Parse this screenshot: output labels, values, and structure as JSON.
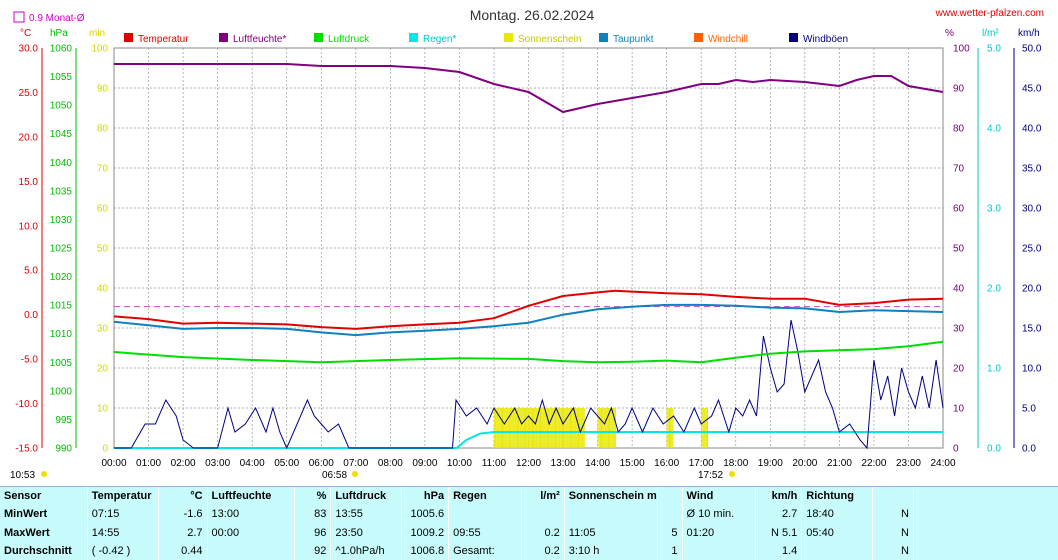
{
  "header": {
    "title": "Montag. 26.02.2024",
    "site": "www.wetter-pfalzen.com",
    "month_avg_label": "0.9 Monat-Ø",
    "unit_labels": {
      "c": "°C",
      "hpa": "hPa",
      "min": "min",
      "pct": "%",
      "lm2": "l/m²",
      "kmh": "km/h"
    }
  },
  "legend": [
    {
      "label": "Temperatur",
      "color": "#e00000"
    },
    {
      "label": "Luftfeuchte*",
      "color": "#800080"
    },
    {
      "label": "Luftdruck",
      "color": "#00dd00"
    },
    {
      "label": "Regen*",
      "color": "#00e8e8"
    },
    {
      "label": "Sonnenschein",
      "color": "#e8e800"
    },
    {
      "label": "Taupunkt",
      "color": "#1080c0"
    },
    {
      "label": "Windchill",
      "color": "#ff6000"
    },
    {
      "label": "Windböen",
      "color": "#000080"
    }
  ],
  "annotations": {
    "sunrise": "06:58",
    "sunset": "17:52",
    "corner_time": "10:53"
  },
  "chart_data": {
    "type": "line",
    "title": "Montag. 26.02.2024",
    "x_ticks": [
      "00:00",
      "01:00",
      "02:00",
      "03:00",
      "04:00",
      "05:00",
      "06:00",
      "07:00",
      "08:00",
      "09:00",
      "10:00",
      "11:00",
      "12:00",
      "13:00",
      "14:00",
      "15:00",
      "16:00",
      "17:00",
      "18:00",
      "19:00",
      "20:00",
      "21:00",
      "22:00",
      "23:00",
      "24:00"
    ],
    "axes": {
      "temperature_c": {
        "range": [
          -15,
          30
        ],
        "ticks": [
          "30.0",
          "25.0",
          "20.0",
          "15.0",
          "10.0",
          "5.0",
          "0.0",
          "-5.0",
          "-10.0",
          "-15.0"
        ]
      },
      "pressure_hpa": {
        "range": [
          990,
          1060
        ],
        "ticks": [
          "1060",
          "1055",
          "1050",
          "1045",
          "1040",
          "1035",
          "1030",
          "1025",
          "1020",
          "1015",
          "1010",
          "1005",
          "1000",
          "995",
          "990"
        ]
      },
      "sunshine_min": {
        "range": [
          0,
          100
        ],
        "ticks": [
          "100",
          "90",
          "80",
          "70",
          "60",
          "50",
          "40",
          "30",
          "20",
          "10",
          "0"
        ]
      },
      "humidity_pct": {
        "range": [
          0,
          100
        ],
        "ticks": [
          "100",
          "90",
          "80",
          "70",
          "60",
          "50",
          "40",
          "30",
          "20",
          "10",
          "0"
        ]
      },
      "rain_lm2": {
        "range": [
          0,
          5
        ],
        "ticks": [
          "5.0",
          "4.0",
          "3.0",
          "2.0",
          "1.0",
          "0.0"
        ]
      },
      "wind_kmh": {
        "range": [
          0,
          50
        ],
        "ticks": [
          "50.0",
          "45.0",
          "40.0",
          "35.0",
          "30.0",
          "25.0",
          "20.0",
          "15.0",
          "10.0",
          "5.0",
          "0.0"
        ]
      }
    },
    "month_avg_temperature": 0.9,
    "series": [
      {
        "name": "Luftfeuchte*",
        "axis": "humidity_pct",
        "points": [
          [
            0,
            96
          ],
          [
            5,
            96
          ],
          [
            6,
            95.5
          ],
          [
            7,
            95.5
          ],
          [
            8,
            95.5
          ],
          [
            9,
            95
          ],
          [
            10,
            94
          ],
          [
            11,
            91
          ],
          [
            12,
            89
          ],
          [
            13,
            84
          ],
          [
            13.5,
            85
          ],
          [
            14,
            86
          ],
          [
            15,
            87.5
          ],
          [
            16,
            89
          ],
          [
            17,
            91
          ],
          [
            17.5,
            91
          ],
          [
            18,
            92
          ],
          [
            18.5,
            91.5
          ],
          [
            19,
            92
          ],
          [
            20,
            91.5
          ],
          [
            21,
            90.5
          ],
          [
            21.5,
            92
          ],
          [
            22,
            93
          ],
          [
            22.5,
            93
          ],
          [
            23,
            90.5
          ],
          [
            24,
            89
          ]
        ]
      },
      {
        "name": "Temperatur",
        "axis": "temperature_c",
        "points": [
          [
            0,
            -0.2
          ],
          [
            1,
            -0.5
          ],
          [
            2,
            -1.0
          ],
          [
            3,
            -0.9
          ],
          [
            4,
            -1.0
          ],
          [
            5,
            -1.1
          ],
          [
            6,
            -1.4
          ],
          [
            7,
            -1.6
          ],
          [
            8,
            -1.3
          ],
          [
            9,
            -1.1
          ],
          [
            10,
            -0.9
          ],
          [
            11,
            -0.4
          ],
          [
            12,
            1.0
          ],
          [
            13,
            2.1
          ],
          [
            14,
            2.5
          ],
          [
            14.5,
            2.7
          ],
          [
            15,
            2.6
          ],
          [
            16,
            2.4
          ],
          [
            17,
            2.3
          ],
          [
            18,
            2.0
          ],
          [
            19,
            1.8
          ],
          [
            20,
            1.8
          ],
          [
            21,
            1.1
          ],
          [
            22,
            1.3
          ],
          [
            23,
            1.7
          ],
          [
            24,
            1.8
          ]
        ]
      },
      {
        "name": "Taupunkt",
        "axis": "temperature_c",
        "points": [
          [
            0,
            -0.8
          ],
          [
            1,
            -1.2
          ],
          [
            2,
            -1.6
          ],
          [
            3,
            -1.5
          ],
          [
            4,
            -1.5
          ],
          [
            5,
            -1.6
          ],
          [
            6,
            -2.0
          ],
          [
            7,
            -2.3
          ],
          [
            8,
            -2.0
          ],
          [
            9,
            -1.8
          ],
          [
            10,
            -1.6
          ],
          [
            11,
            -1.3
          ],
          [
            12,
            -0.9
          ],
          [
            13,
            0.0
          ],
          [
            14,
            0.6
          ],
          [
            15,
            0.9
          ],
          [
            16,
            1.1
          ],
          [
            17,
            1.1
          ],
          [
            18,
            1.0
          ],
          [
            19,
            0.8
          ],
          [
            20,
            0.7
          ],
          [
            21,
            0.3
          ],
          [
            22,
            0.5
          ],
          [
            23,
            0.4
          ],
          [
            24,
            0.3
          ]
        ]
      },
      {
        "name": "Luftdruck",
        "axis": "pressure_hpa",
        "points": [
          [
            0,
            1006.8
          ],
          [
            2,
            1005.9
          ],
          [
            4,
            1005.4
          ],
          [
            6,
            1005.0
          ],
          [
            7,
            1005.2
          ],
          [
            8,
            1005.4
          ],
          [
            10,
            1005.7
          ],
          [
            12,
            1005.6
          ],
          [
            13,
            1005.2
          ],
          [
            14,
            1005.0
          ],
          [
            15,
            1005.1
          ],
          [
            16,
            1005.3
          ],
          [
            17,
            1005.0
          ],
          [
            18,
            1005.8
          ],
          [
            19,
            1006.5
          ],
          [
            20,
            1006.9
          ],
          [
            21,
            1007.1
          ],
          [
            22,
            1007.3
          ],
          [
            23,
            1007.8
          ],
          [
            24,
            1008.6
          ]
        ]
      },
      {
        "name": "Regen*",
        "axis": "rain_lm2",
        "points": [
          [
            0,
            0
          ],
          [
            9.92,
            0
          ],
          [
            10.2,
            0.1
          ],
          [
            10.6,
            0.18
          ],
          [
            11,
            0.2
          ],
          [
            24,
            0.2
          ]
        ]
      },
      {
        "name": "Windböen",
        "axis": "wind_kmh",
        "points": [
          [
            0,
            0
          ],
          [
            0.5,
            0
          ],
          [
            0.9,
            3
          ],
          [
            1.2,
            3
          ],
          [
            1.5,
            6
          ],
          [
            1.8,
            4
          ],
          [
            2,
            1
          ],
          [
            2.3,
            0
          ],
          [
            3,
            0
          ],
          [
            3.3,
            5
          ],
          [
            3.5,
            2
          ],
          [
            3.8,
            3
          ],
          [
            4.1,
            5
          ],
          [
            4.4,
            2
          ],
          [
            4.6,
            5
          ],
          [
            4.8,
            2
          ],
          [
            5,
            0
          ],
          [
            5.3,
            3
          ],
          [
            5.6,
            6
          ],
          [
            5.8,
            4
          ],
          [
            6,
            3
          ],
          [
            6.2,
            2
          ],
          [
            6.5,
            3
          ],
          [
            6.8,
            0
          ],
          [
            9.8,
            0
          ],
          [
            9.9,
            6
          ],
          [
            10.2,
            4
          ],
          [
            10.5,
            5
          ],
          [
            10.8,
            3
          ],
          [
            11,
            5
          ],
          [
            11.3,
            3
          ],
          [
            11.6,
            5
          ],
          [
            11.8,
            3
          ],
          [
            12,
            4
          ],
          [
            12.2,
            3
          ],
          [
            12.4,
            6
          ],
          [
            12.6,
            3
          ],
          [
            12.8,
            5
          ],
          [
            13,
            3
          ],
          [
            13.3,
            5
          ],
          [
            13.5,
            2
          ],
          [
            13.8,
            5
          ],
          [
            14,
            4
          ],
          [
            14.2,
            3
          ],
          [
            14.4,
            5
          ],
          [
            14.6,
            2
          ],
          [
            14.8,
            3
          ],
          [
            15,
            5
          ],
          [
            15.3,
            2
          ],
          [
            15.6,
            5
          ],
          [
            15.9,
            3
          ],
          [
            16.2,
            4
          ],
          [
            16.5,
            2
          ],
          [
            16.8,
            5
          ],
          [
            17,
            3
          ],
          [
            17.3,
            4
          ],
          [
            17.5,
            6
          ],
          [
            17.8,
            2
          ],
          [
            18,
            5
          ],
          [
            18.2,
            4
          ],
          [
            18.4,
            6
          ],
          [
            18.6,
            4
          ],
          [
            18.8,
            14
          ],
          [
            19,
            10
          ],
          [
            19.2,
            7
          ],
          [
            19.4,
            8
          ],
          [
            19.6,
            16
          ],
          [
            19.8,
            12
          ],
          [
            20,
            7
          ],
          [
            20.2,
            9
          ],
          [
            20.4,
            11
          ],
          [
            20.6,
            7
          ],
          [
            20.8,
            5
          ],
          [
            21,
            2
          ],
          [
            21.3,
            3
          ],
          [
            21.6,
            1
          ],
          [
            21.8,
            0
          ],
          [
            22,
            11
          ],
          [
            22.2,
            6
          ],
          [
            22.4,
            9
          ],
          [
            22.6,
            4
          ],
          [
            22.8,
            10
          ],
          [
            23,
            7
          ],
          [
            23.2,
            5
          ],
          [
            23.4,
            9
          ],
          [
            23.6,
            5
          ],
          [
            23.8,
            11
          ],
          [
            24,
            5
          ]
        ]
      }
    ],
    "sunshine_blocks": [
      [
        11,
        13.6
      ],
      [
        14,
        14.5
      ],
      [
        16,
        16.2
      ],
      [
        17,
        17.2
      ]
    ]
  },
  "stats": {
    "headers": [
      "Sensor",
      "Temperatur",
      "°C",
      "Luftfeuchte",
      "%",
      "Luftdruck",
      "hPa",
      "Regen",
      "l/m²",
      "Sonnenschein min",
      "",
      "Wind",
      "km/h",
      "Richtung",
      ""
    ],
    "rows": [
      [
        "MinWert",
        "07:15",
        "-1.6",
        "13:00",
        "83",
        "13:55",
        "1005.6",
        "",
        "",
        "",
        "",
        "Ø 10 min.",
        "2.7",
        "18:40",
        "N"
      ],
      [
        "MaxWert",
        "14:55",
        "2.7",
        "00:00",
        "96",
        "23:50",
        "1009.2",
        "09:55",
        "0.2",
        "11:05",
        "5",
        "01:20",
        "N 5.1",
        "05:40",
        "N"
      ],
      [
        "Durchschnitt",
        "( -0.42 )",
        "0.44",
        "",
        "92",
        "^1.0hPa/h",
        "1006.8",
        "Gesamt:",
        "0.2",
        "3:10 h",
        "1",
        "",
        "1.4",
        "",
        "N"
      ]
    ]
  }
}
